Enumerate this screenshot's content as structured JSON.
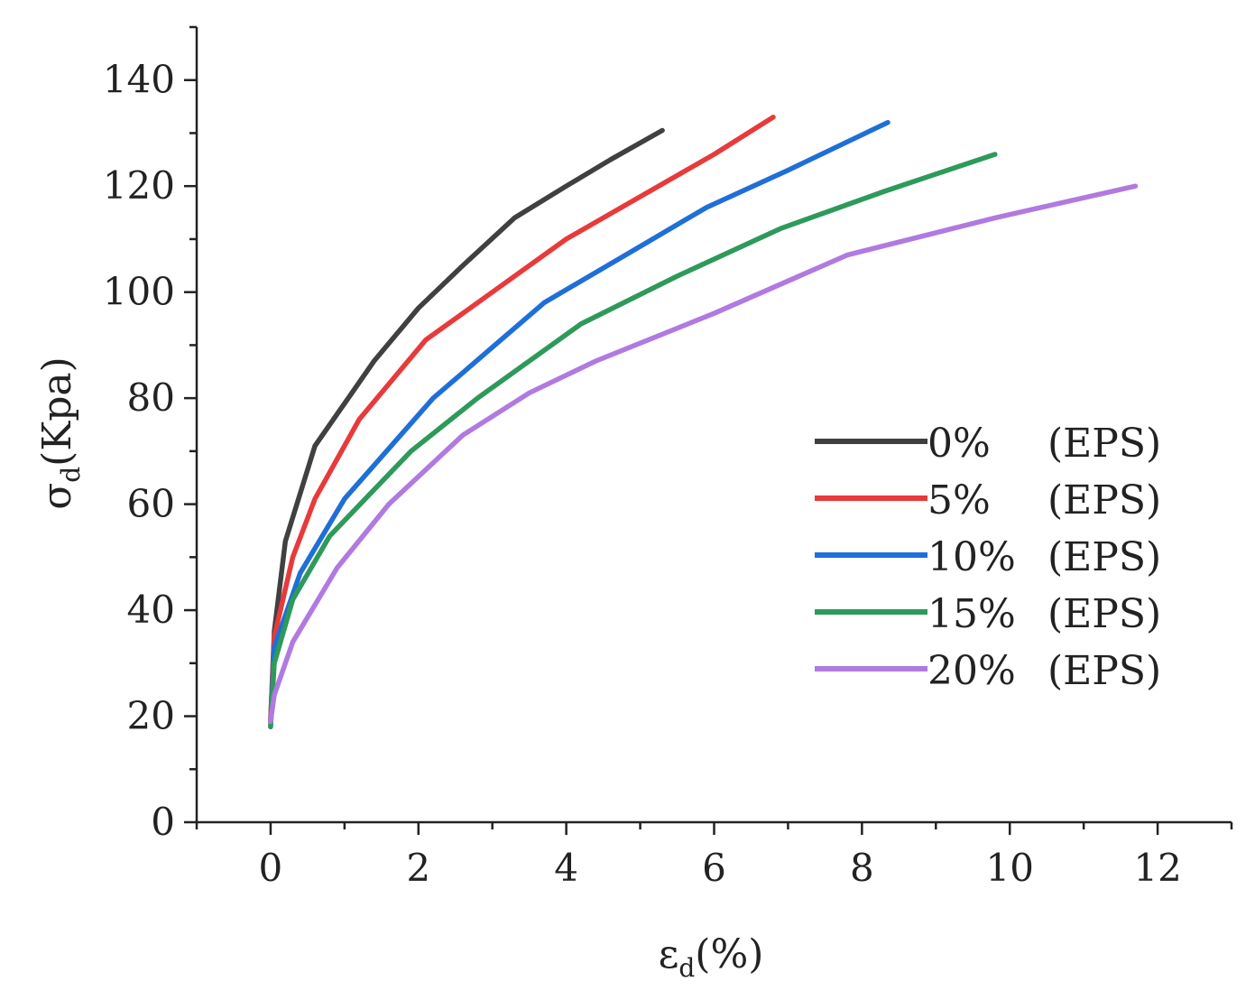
{
  "chart_data": {
    "type": "line",
    "title": "",
    "xlabel": {
      "symbol": "ε",
      "subscript": "d",
      "unit": "(%)"
    },
    "ylabel": {
      "symbol": "σ",
      "subscript": "d",
      "unit": "(Kpa)"
    },
    "xlim": [
      -1,
      13
    ],
    "ylim": [
      0,
      150
    ],
    "xticks": [
      0,
      2,
      4,
      6,
      8,
      10,
      12
    ],
    "yticks": [
      0,
      20,
      40,
      60,
      80,
      100,
      120,
      140
    ],
    "xtick_labels": [
      "0",
      "2",
      "4",
      "6",
      "8",
      "10",
      "12"
    ],
    "ytick_labels": [
      "0",
      "20",
      "40",
      "60",
      "80",
      "100",
      "120",
      "140"
    ],
    "grid": false,
    "legend_position": "center-right",
    "series": [
      {
        "name": "0%",
        "tag": "(EPS)",
        "color": "#404040",
        "x": [
          0,
          0.05,
          0.2,
          0.6,
          1.0,
          1.4,
          2.0,
          2.6,
          3.3,
          4.0,
          4.6,
          5.3
        ],
        "y": [
          19,
          36,
          53,
          71,
          79,
          87,
          97,
          105,
          114,
          120,
          125,
          130.5
        ]
      },
      {
        "name": "5%",
        "tag": "(EPS)",
        "color": "#e83a3a",
        "x": [
          0,
          0.05,
          0.3,
          0.6,
          1.2,
          2.1,
          3.0,
          4.0,
          5.0,
          6.0,
          6.8
        ],
        "y": [
          19,
          35,
          50,
          61,
          76,
          91,
          100,
          110,
          118,
          126,
          133
        ]
      },
      {
        "name": "10%",
        "tag": "(EPS)",
        "color": "#1e6fd8",
        "x": [
          0,
          0.05,
          0.4,
          1.0,
          2.2,
          3.7,
          4.8,
          5.9,
          7.0,
          8.35
        ],
        "y": [
          18,
          33,
          47,
          61,
          80,
          98,
          107,
          116,
          123,
          132
        ]
      },
      {
        "name": "15%",
        "tag": "(EPS)",
        "color": "#2e9a5a",
        "x": [
          0,
          0.05,
          0.3,
          0.8,
          1.9,
          2.8,
          4.2,
          5.5,
          6.9,
          8.3,
          9.8
        ],
        "y": [
          18,
          30,
          42,
          54,
          70,
          80,
          94,
          103,
          112,
          119,
          126
        ]
      },
      {
        "name": "20%",
        "tag": "(EPS)",
        "color": "#b07ae0",
        "x": [
          0,
          0.05,
          0.3,
          0.9,
          1.6,
          2.6,
          3.5,
          4.4,
          6.0,
          7.8,
          9.8,
          11.7
        ],
        "y": [
          19,
          24,
          34,
          48,
          60,
          73,
          81,
          87,
          96,
          107,
          114,
          120
        ]
      }
    ]
  }
}
